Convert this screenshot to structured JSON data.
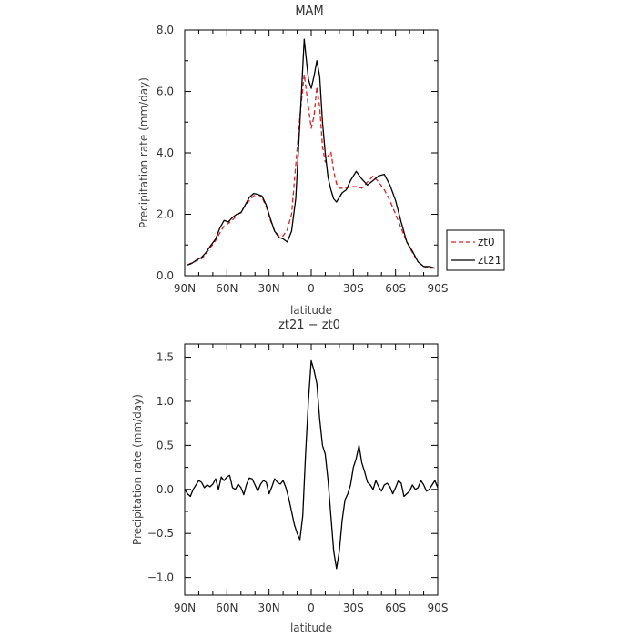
{
  "chart_data": [
    {
      "type": "line",
      "title": "MAM",
      "xlabel": "latitude",
      "ylabel": "Precipitation rate (mm/day)",
      "xlim": [
        90,
        -90
      ],
      "ylim": [
        0,
        8
      ],
      "x_ticks": [
        90,
        60,
        30,
        0,
        -30,
        -60,
        -90
      ],
      "x_tick_labels": [
        "90N",
        "60N",
        "30N",
        "0",
        "30S",
        "60S",
        "90S"
      ],
      "y_ticks": [
        0,
        2,
        4,
        6,
        8
      ],
      "y_tick_labels": [
        "0.0",
        "2.0",
        "4.0",
        "6.0",
        "8.0"
      ],
      "grid": false,
      "legend": "right",
      "series": [
        {
          "name": "zt0",
          "color": "#dd2222",
          "dash": "dashed",
          "x": [
            88,
            85,
            82,
            78,
            75,
            72,
            68,
            65,
            62,
            59,
            56,
            53,
            50,
            47,
            44,
            41,
            38,
            35,
            32,
            29,
            26,
            23,
            20,
            17,
            14,
            11,
            8,
            5,
            2,
            0,
            -2,
            -4,
            -6,
            -8,
            -10,
            -12,
            -14,
            -16,
            -18,
            -20,
            -22,
            -25,
            -28,
            -32,
            -36,
            -40,
            -44,
            -48,
            -52,
            -56,
            -60,
            -64,
            -68,
            -72,
            -76,
            -80,
            -84,
            -88
          ],
          "y": [
            0.35,
            0.42,
            0.48,
            0.55,
            0.7,
            0.9,
            1.15,
            1.4,
            1.62,
            1.7,
            1.82,
            1.95,
            2.08,
            2.28,
            2.45,
            2.6,
            2.65,
            2.55,
            2.25,
            1.8,
            1.45,
            1.3,
            1.3,
            1.5,
            2.0,
            3.6,
            5.2,
            6.55,
            5.5,
            4.8,
            5.2,
            6.15,
            5.5,
            4.2,
            3.7,
            3.9,
            4.05,
            3.4,
            3.0,
            2.85,
            2.85,
            2.85,
            2.9,
            2.9,
            2.85,
            3.05,
            3.25,
            3.05,
            2.8,
            2.45,
            2.0,
            1.55,
            1.1,
            0.75,
            0.45,
            0.3,
            0.25,
            0.25
          ]
        },
        {
          "name": "zt21",
          "color": "#000000",
          "dash": "solid",
          "x": [
            88,
            85,
            82,
            78,
            75,
            72,
            68,
            65,
            62,
            59,
            56,
            53,
            50,
            47,
            44,
            41,
            38,
            35,
            32,
            29,
            26,
            23,
            20,
            17,
            14,
            11,
            8,
            5,
            2,
            0,
            -2,
            -4,
            -6,
            -8,
            -10,
            -12,
            -14,
            -16,
            -18,
            -20,
            -22,
            -25,
            -28,
            -32,
            -36,
            -40,
            -44,
            -48,
            -52,
            -56,
            -60,
            -64,
            -68,
            -72,
            -76,
            -80,
            -84,
            -88
          ],
          "y": [
            0.35,
            0.4,
            0.5,
            0.6,
            0.75,
            0.95,
            1.2,
            1.55,
            1.8,
            1.75,
            1.9,
            2.0,
            2.05,
            2.3,
            2.55,
            2.68,
            2.65,
            2.6,
            2.3,
            1.85,
            1.45,
            1.25,
            1.2,
            1.1,
            1.45,
            2.5,
            5.0,
            7.7,
            6.4,
            6.1,
            6.5,
            7.0,
            6.5,
            5.0,
            4.0,
            3.2,
            2.8,
            2.5,
            2.4,
            2.55,
            2.7,
            2.8,
            3.1,
            3.4,
            3.15,
            2.95,
            3.1,
            3.25,
            3.3,
            2.95,
            2.45,
            1.75,
            1.1,
            0.8,
            0.45,
            0.3,
            0.3,
            0.25
          ]
        }
      ]
    },
    {
      "type": "line",
      "title": "zt21 − zt0",
      "xlabel": "latitude",
      "ylabel": "Precipitation rate (mm/day)",
      "xlim": [
        90,
        -90
      ],
      "ylim": [
        -1.2,
        1.65
      ],
      "x_ticks": [
        90,
        60,
        30,
        0,
        -30,
        -60,
        -90
      ],
      "x_tick_labels": [
        "90N",
        "60N",
        "30N",
        "0",
        "30S",
        "60S",
        "90S"
      ],
      "y_ticks": [
        -1.0,
        -0.5,
        0.0,
        0.5,
        1.0,
        1.5
      ],
      "y_tick_labels": [
        "−1.0",
        "−0.5",
        "0.0",
        "0.5",
        "1.0",
        "1.5"
      ],
      "grid": false,
      "series": [
        {
          "name": "",
          "color": "#000000",
          "dash": "solid",
          "x": [
            90,
            88,
            86,
            84,
            82,
            80,
            78,
            76,
            74,
            72,
            70,
            68,
            66,
            64,
            62,
            60,
            58,
            56,
            54,
            52,
            50,
            48,
            46,
            44,
            42,
            40,
            38,
            36,
            34,
            32,
            30,
            28,
            26,
            24,
            22,
            20,
            18,
            16,
            14,
            12,
            10,
            8,
            6,
            4,
            2,
            0,
            -2,
            -4,
            -6,
            -8,
            -10,
            -12,
            -14,
            -16,
            -18,
            -20,
            -22,
            -24,
            -26,
            -28,
            -30,
            -32,
            -34,
            -36,
            -38,
            -40,
            -42,
            -44,
            -46,
            -48,
            -50,
            -52,
            -54,
            -56,
            -58,
            -60,
            -62,
            -64,
            -66,
            -68,
            -70,
            -72,
            -74,
            -76,
            -78,
            -80,
            -82,
            -84,
            -86,
            -88,
            -90
          ],
          "y": [
            0.0,
            -0.05,
            -0.08,
            0.0,
            0.05,
            0.1,
            0.08,
            0.02,
            0.05,
            0.03,
            0.06,
            0.12,
            0.0,
            0.14,
            0.1,
            0.14,
            0.16,
            0.02,
            0.0,
            0.06,
            0.02,
            -0.06,
            0.06,
            0.13,
            0.12,
            0.05,
            -0.02,
            0.06,
            0.1,
            0.08,
            -0.05,
            0.03,
            0.12,
            0.08,
            0.06,
            0.1,
            0.02,
            -0.1,
            -0.25,
            -0.4,
            -0.5,
            -0.57,
            -0.3,
            0.4,
            1.0,
            1.46,
            1.35,
            1.2,
            0.8,
            0.5,
            0.4,
            0.1,
            -0.3,
            -0.7,
            -0.9,
            -0.7,
            -0.35,
            -0.12,
            -0.05,
            0.05,
            0.25,
            0.35,
            0.5,
            0.3,
            0.2,
            0.08,
            0.05,
            0.0,
            0.1,
            0.03,
            -0.02,
            0.05,
            0.07,
            0.03,
            -0.05,
            0.02,
            0.1,
            0.07,
            -0.08,
            -0.05,
            -0.02,
            0.05,
            0.0,
            0.02,
            0.1,
            0.05,
            -0.02,
            0.0,
            0.05,
            0.1,
            0.02
          ]
        }
      ]
    }
  ]
}
